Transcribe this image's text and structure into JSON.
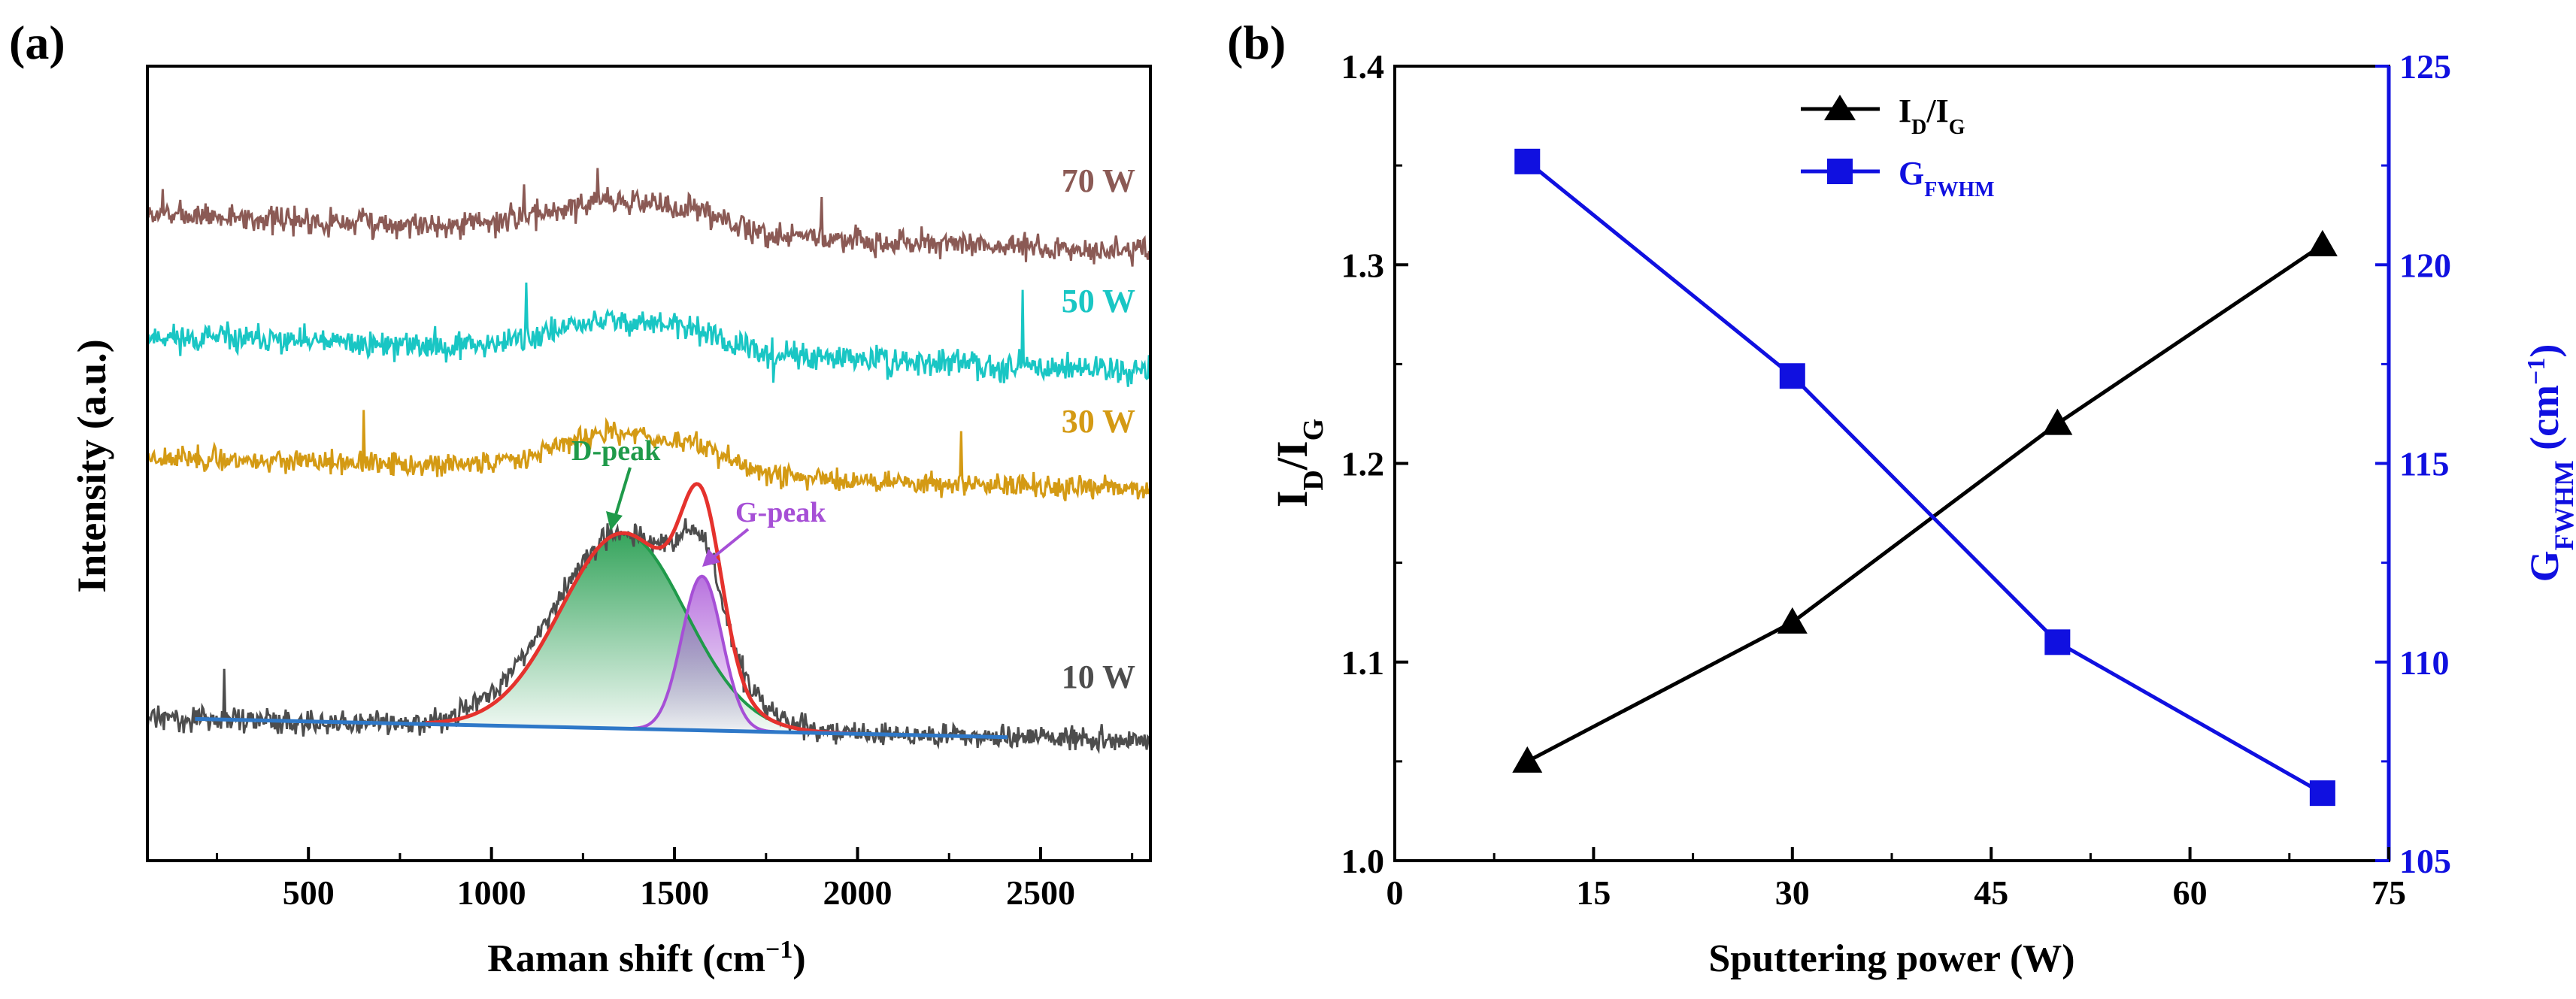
{
  "chart_data": [
    {
      "panel_label": "(a)",
      "type": "line",
      "title": "",
      "xlabel": "Raman shift (cm",
      "xlabel_sup": "−1",
      "xlabel_close": ")",
      "ylabel": "Intensity (a.u.)",
      "xlim": [
        60,
        2800
      ],
      "x_ticks": [
        500,
        1000,
        1500,
        2000,
        2500
      ],
      "x_tick_labels": [
        "500",
        "1000",
        "1500",
        "2000",
        "2500"
      ],
      "y_ticks_shown": false,
      "series": [
        {
          "name": "70 W",
          "color": "#8B5A55",
          "baseline": 6.6,
          "hump": 0.5,
          "g_amp": 0.1,
          "d_amp": 0.42,
          "noise": 0.18,
          "slope": 0.5,
          "seed": 7
        },
        {
          "name": "50 W",
          "color": "#19C6C4",
          "baseline": 5.0,
          "hump": 0.5,
          "g_amp": 0.1,
          "d_amp": 0.42,
          "noise": 0.18,
          "slope": 0.45,
          "seed": 11
        },
        {
          "name": "30 W",
          "color": "#D49A14",
          "baseline": 3.4,
          "hump": 0.6,
          "g_amp": 0.12,
          "d_amp": 0.52,
          "noise": 0.15,
          "slope": 0.45,
          "seed": 23
        },
        {
          "name": "10 W",
          "color": "#4D4D4D",
          "baseline": 0.0,
          "hump": 1.0,
          "g_amp": 1.2,
          "d_amp": 2.6,
          "noise": 0.16,
          "slope": 0.3,
          "seed": 31
        }
      ],
      "fit_components": [
        {
          "name": "D-peak",
          "center": 1360,
          "width": 170,
          "amp": 2.6,
          "color": "#1F9A4A"
        },
        {
          "name": "G-peak",
          "center": 1575,
          "width": 55,
          "amp": 2.05,
          "color": "#A64FD6"
        }
      ],
      "fit_total_color": "#E5322D",
      "fit_baseline_color": "#2E78C8",
      "annotations": [
        "D-peak",
        "G-peak"
      ]
    },
    {
      "panel_label": "(b)",
      "type": "line",
      "title": "",
      "xlabel": "Sputtering power (W)",
      "ylabel_main": "I",
      "ylabel_main_sub1": "D",
      "ylabel_main_mid": "/I",
      "ylabel_main_sub2": "G",
      "ylabel_right_main": "G",
      "ylabel_right_sub": "FWHM",
      "ylabel_right_unit": " (cm",
      "ylabel_right_sup": "−1",
      "ylabel_right_close": ")",
      "xlim": [
        0,
        75
      ],
      "ylim_left": [
        1.0,
        1.4
      ],
      "ylim_right": [
        105,
        125
      ],
      "x_ticks": [
        "0",
        "15",
        "30",
        "45",
        "60",
        "75"
      ],
      "y_left_ticks": [
        "1.0",
        "1.1",
        "1.2",
        "1.3",
        "1.4"
      ],
      "y_right_ticks": [
        "105",
        "110",
        "115",
        "120",
        "125"
      ],
      "x": [
        10,
        30,
        50,
        70
      ],
      "series": [
        {
          "name": "I",
          "name_sub1": "D",
          "name_mid": "/I",
          "name_sub2": "G",
          "axis": "left",
          "marker": "triangle",
          "color": "#000000",
          "values": [
            1.05,
            1.12,
            1.22,
            1.31
          ]
        },
        {
          "name": "G",
          "name_sub1": "FWHM",
          "axis": "right",
          "marker": "square",
          "color": "#1010E0",
          "values": [
            122.6,
            117.2,
            110.5,
            106.7
          ]
        }
      ],
      "legend_position": "top-center"
    }
  ],
  "colors": {
    "axis": "#000000",
    "right_axis": "#1010E0"
  }
}
